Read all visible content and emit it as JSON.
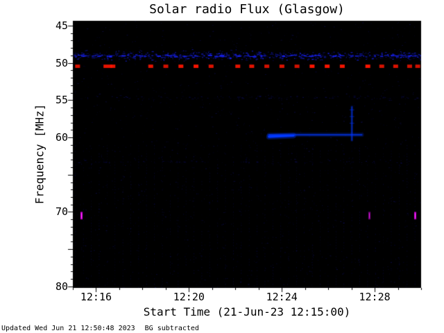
{
  "footer": {
    "updated": "Updated Wed Jun 21 12:50:48 2023",
    "bg": "BG subtracted"
  },
  "chart_data": {
    "type": "heatmap",
    "title": "Solar radio Flux (Glasgow)",
    "xlabel": "Start Time (21-Jun-23 12:15:00)",
    "ylabel": "Frequency [MHz]",
    "x_unit": "minutes after 12:15:00",
    "xlim": [
      0,
      15
    ],
    "ylim": [
      44.35,
      80.2
    ],
    "background": "#000000",
    "x_ticks": [
      {
        "t": 1,
        "label": "12:16"
      },
      {
        "t": 5,
        "label": "12:20"
      },
      {
        "t": 9,
        "label": "12:24"
      },
      {
        "t": 13,
        "label": "12:28"
      }
    ],
    "x_minor_step": 1,
    "y_ticks": [
      {
        "f": 45,
        "label": "45"
      },
      {
        "f": 50,
        "label": "50"
      },
      {
        "f": 55,
        "label": "55"
      },
      {
        "f": 60,
        "label": "60"
      },
      {
        "f": 65,
        "label": ""
      },
      {
        "f": 70,
        "label": "70"
      },
      {
        "f": 75,
        "label": ""
      },
      {
        "f": 80,
        "label": "80"
      }
    ],
    "y_minor_step": 1,
    "features": {
      "background_noise": {
        "count": 1700,
        "color_rgb": [
          40,
          40,
          220
        ],
        "alpha_max": 0.28
      },
      "vertical_stripe_grid": {
        "t_start": 0.1,
        "t_step": 0.34,
        "f_top": 61.0,
        "f_bottom": 80.0,
        "alpha": 0.11,
        "color_rgb": [
          40,
          40,
          210
        ]
      },
      "speckle_rows": [
        {
          "freq": 49.0,
          "halfwidth": 0.75,
          "count": 950,
          "alpha_max": 0.95,
          "color_rgb": [
            25,
            35,
            255
          ],
          "core_dashes": 90,
          "note": "dense blue interference band just above 50 MHz line"
        },
        {
          "freq": 54.6,
          "halfwidth": 0.35,
          "count": 160,
          "alpha_max": 0.35,
          "color_rgb": [
            35,
            35,
            230
          ]
        },
        {
          "freq": 63.2,
          "halfwidth": 0.4,
          "count": 140,
          "alpha_max": 0.3,
          "color_rgb": [
            35,
            35,
            230
          ]
        }
      ],
      "red_dash_row": {
        "freq": 50.45,
        "height_mhz": 0.45,
        "width_min": 0.21,
        "color": "#ff1500",
        "times": [
          0.1,
          1.32,
          1.62,
          3.25,
          3.9,
          4.55,
          5.2,
          5.85,
          7.0,
          7.6,
          8.25,
          8.9,
          9.55,
          10.2,
          10.85,
          11.5,
          12.6,
          13.2,
          13.8,
          14.4,
          14.75
        ],
        "wide_times": [
          1.32
        ],
        "note": "periodic red calibration dashes near 50.5 MHz"
      },
      "burst": {
        "freq": 59.65,
        "t_start": 8.45,
        "t_end": 12.45,
        "bright_t_end": 9.5,
        "color": "#0038ff",
        "spike": {
          "t": 12.02,
          "f_top": 55.9,
          "f_bottom": 60.4
        },
        "spike_ticks": [
          56.3,
          57.2,
          58.1
        ],
        "note": "narrowband emission line near 60 MHz from ~12:23 to ~12:27 with vertical spike near 12:27"
      },
      "magenta_marks": {
        "freq_top": 70.0,
        "freq_bottom": 71.0,
        "color": "#d000d8",
        "core_color": "#ff40ff",
        "times": [
          0.36,
          12.75,
          14.72
        ],
        "alphas": [
          1,
          0.6,
          0.95
        ],
        "note": "short magenta interference marks near 70.5 MHz"
      }
    }
  }
}
